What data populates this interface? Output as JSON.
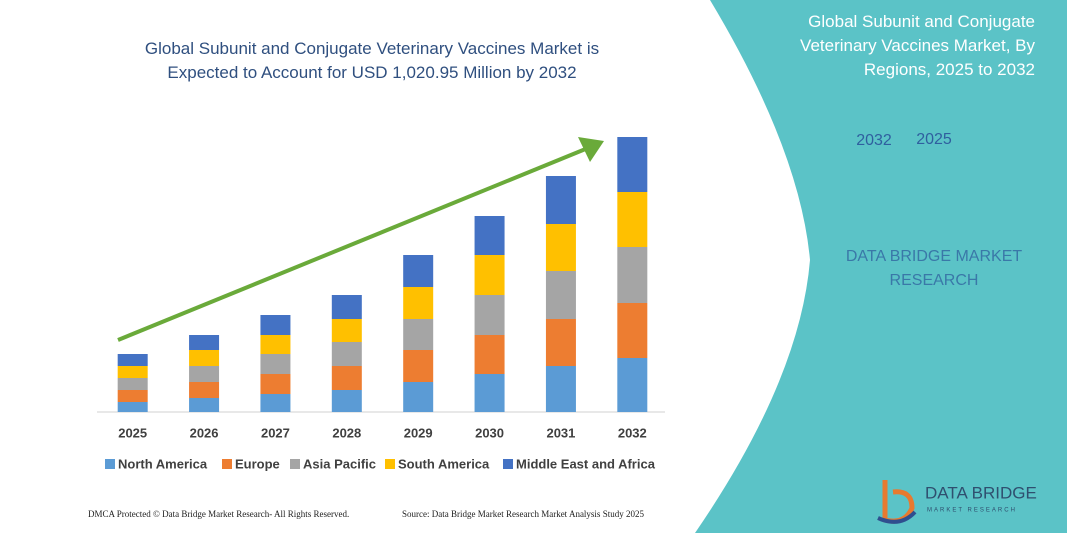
{
  "chart_data": {
    "type": "bar",
    "stacked": true,
    "title": "Global Subunit and Conjugate Veterinary Vaccines Market is Expected to Account for USD 1,020.95 Million by 2032",
    "categories": [
      "2025",
      "2026",
      "2027",
      "2028",
      "2029",
      "2030",
      "2031",
      "2032"
    ],
    "series": [
      {
        "name": "North America",
        "color": "#5b9bd5",
        "values": [
          10,
          14,
          18,
          22,
          30,
          38,
          46,
          54
        ]
      },
      {
        "name": "Europe",
        "color": "#ed7d31",
        "values": [
          12,
          16,
          20,
          24,
          32,
          39,
          47,
          55
        ]
      },
      {
        "name": "Asia Pacific",
        "color": "#a5a5a5",
        "values": [
          12,
          16,
          20,
          24,
          31,
          40,
          48,
          56
        ]
      },
      {
        "name": "South America",
        "color": "#ffc000",
        "values": [
          12,
          16,
          19,
          23,
          32,
          40,
          47,
          55
        ]
      },
      {
        "name": "Middle East and Africa",
        "color": "#4472c4",
        "values": [
          12,
          15,
          20,
          24,
          32,
          39,
          48,
          55
        ]
      }
    ],
    "ylim": [
      0,
      280
    ]
  },
  "panel": {
    "title": "Global Subunit and Conjugate Veterinary Vaccines Market, By Regions, 2025 to 2032",
    "hexagons": [
      "2025",
      "2032"
    ],
    "brand": "DATA BRIDGE MARKET RESEARCH"
  },
  "logo": {
    "text": "DATA BRIDGE",
    "subtext": "MARKET RESEARCH"
  },
  "footer": {
    "left": "DMCA Protected © Data Bridge Market Research- All Rights Reserved.",
    "right": "Source: Data Bridge Market Research Market Analysis Study 2025"
  }
}
